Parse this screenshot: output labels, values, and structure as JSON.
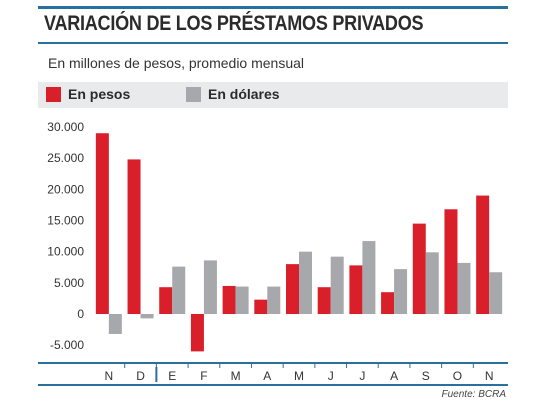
{
  "title": "VARIACIÓN DE LOS PRÉSTAMOS PRIVADOS",
  "subtitle": "En millones de pesos, promedio mensual",
  "source": "Fuente: BCRA",
  "colors": {
    "accent": "#2a6f9e",
    "pesos": "#d81f2a",
    "dolares": "#a7a8ab"
  },
  "chart_data": {
    "type": "bar",
    "title": "VARIACIÓN DE LOS PRÉSTAMOS PRIVADOS",
    "subtitle": "En millones de pesos, promedio mensual",
    "categories": [
      "N",
      "D",
      "E",
      "F",
      "M",
      "A",
      "M",
      "J",
      "J",
      "A",
      "S",
      "O",
      "N"
    ],
    "year_break_after_index": 1,
    "series": [
      {
        "name": "En pesos",
        "color": "#d81f2a",
        "values": [
          29000,
          24800,
          4300,
          -6000,
          4500,
          2300,
          8000,
          4300,
          7800,
          3500,
          14500,
          16800,
          19000
        ]
      },
      {
        "name": "En dólares",
        "color": "#a7a8ab",
        "values": [
          -3200,
          -700,
          7600,
          8600,
          4400,
          4400,
          10000,
          9200,
          11700,
          7200,
          9900,
          8200,
          6700
        ]
      }
    ],
    "yticks": [
      30000,
      25000,
      20000,
      15000,
      10000,
      5000,
      0,
      -5000
    ],
    "ytick_labels": [
      "30.000",
      "25.000",
      "20.000",
      "15.000",
      "10.000",
      "5.000",
      "0",
      "-5.000"
    ],
    "ylim": [
      -6500,
      31000
    ],
    "legend": "top-left",
    "grid": false
  }
}
